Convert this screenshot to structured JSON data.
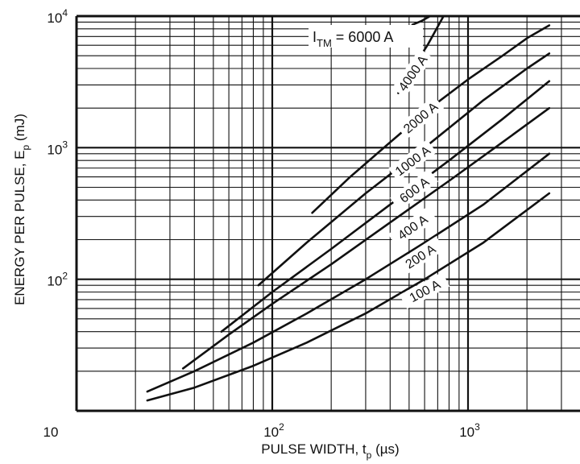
{
  "chart_data": {
    "type": "line",
    "title": "",
    "xlabel": "PULSE WIDTH, t",
    "xlabel_sub": "p",
    "xlabel_unit": "(µs)",
    "ylabel": "ENERGY PER PULSE, E",
    "ylabel_sub": "p",
    "ylabel_unit": "(mJ)",
    "x_scale": "log",
    "y_scale": "log",
    "xlim": [
      10,
      2600
    ],
    "ylim": [
      10,
      10000
    ],
    "grid": true,
    "x_ticks": [
      {
        "value": 10,
        "base": "10",
        "exp": ""
      },
      {
        "value": 100,
        "base": "10",
        "exp": "2"
      },
      {
        "value": 1000,
        "base": "10",
        "exp": "3"
      }
    ],
    "y_ticks": [
      {
        "value": 100,
        "base": "10",
        "exp": "2"
      },
      {
        "value": 1000,
        "base": "10",
        "exp": "3"
      },
      {
        "value": 10000,
        "base": "10",
        "exp": "4"
      }
    ],
    "legend_title": {
      "main": "I",
      "sub": "TM",
      "suffix": " =  6000 A"
    },
    "series": [
      {
        "label": "6000 A",
        "x": [
          520,
          580,
          640
        ],
        "y": [
          8600,
          9200,
          10000
        ]
      },
      {
        "label": "4000 A",
        "x": [
          440,
          520,
          620,
          750
        ],
        "y": [
          2600,
          4000,
          6000,
          10000
        ]
      },
      {
        "label": "2000 A",
        "x": [
          160,
          250,
          400,
          640,
          1000,
          1500,
          2000,
          2600
        ],
        "y": [
          320,
          600,
          1100,
          2000,
          3300,
          5000,
          6800,
          8500
        ]
      },
      {
        "label": "1000 A",
        "x": [
          85,
          150,
          300,
          600,
          1200,
          2000,
          2600
        ],
        "y": [
          90,
          190,
          450,
          1000,
          2300,
          4000,
          5200
        ]
      },
      {
        "label": "600 A",
        "x": [
          55,
          100,
          200,
          400,
          800,
          1500,
          2600
        ],
        "y": [
          40,
          80,
          170,
          370,
          800,
          1650,
          3200
        ]
      },
      {
        "label": "400 A",
        "x": [
          35,
          60,
          100,
          200,
          400,
          800,
          1500,
          2600
        ],
        "y": [
          21,
          38,
          65,
          130,
          270,
          560,
          1100,
          2000
        ]
      },
      {
        "label": "200 A",
        "x": [
          23,
          40,
          80,
          150,
          300,
          600,
          1200,
          2600
        ],
        "y": [
          14,
          20,
          33,
          55,
          100,
          190,
          370,
          900
        ]
      },
      {
        "label": "100 A",
        "x": [
          23,
          40,
          80,
          150,
          300,
          600,
          1200,
          2600
        ],
        "y": [
          12,
          15,
          22,
          33,
          55,
          100,
          190,
          450
        ]
      }
    ],
    "curve_labels": [
      {
        "text": "4000 A",
        "x": 520,
        "y": 3700,
        "angle": -55
      },
      {
        "text": "2000 A",
        "x": 570,
        "y": 1700,
        "angle": -40
      },
      {
        "text": "1000 A",
        "x": 520,
        "y": 800,
        "angle": -37
      },
      {
        "text": "600 A",
        "x": 530,
        "y": 480,
        "angle": -37
      },
      {
        "text": "400 A",
        "x": 520,
        "y": 250,
        "angle": -35
      },
      {
        "text": "200 A",
        "x": 570,
        "y": 150,
        "angle": -33
      },
      {
        "text": "100 A",
        "x": 600,
        "y": 82,
        "angle": -28
      }
    ]
  }
}
